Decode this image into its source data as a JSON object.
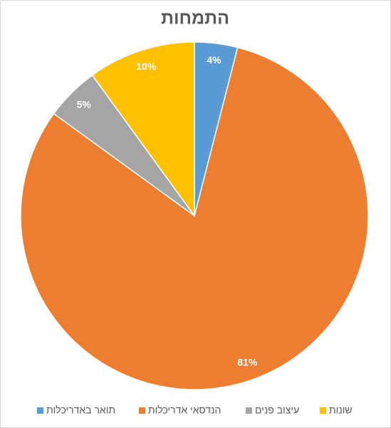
{
  "chart_data": {
    "type": "pie",
    "title": "התמחות",
    "categories": [
      "תואר באדריכלות",
      "הנדסאי אדריכלות",
      "עיצוב פנים",
      "שונות"
    ],
    "values": [
      4,
      81,
      5,
      10
    ],
    "value_labels": [
      "4%",
      "81%",
      "5%",
      "10%"
    ],
    "colors": [
      "#5b9bd5",
      "#ed7d31",
      "#a5a5a5",
      "#ffc000"
    ],
    "legend": "bottom"
  }
}
